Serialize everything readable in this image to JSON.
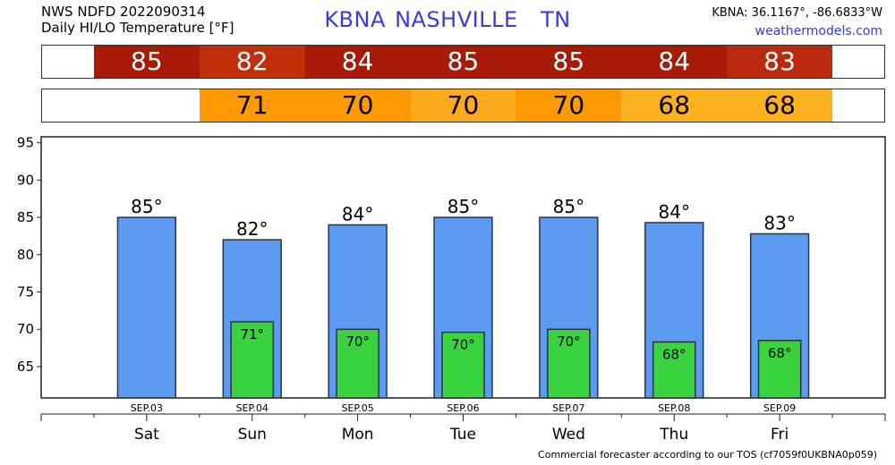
{
  "header": {
    "line1": "NWS NDFD 2022090314",
    "line2": "Daily HI/LO Temperature [°F]",
    "station_code": "KBNA",
    "station_name": "NASHVILLE",
    "state": "TN",
    "coords": "KBNA: 36.1167°, -86.6833°W",
    "site": "weathermodels.com"
  },
  "footer": "Commercial forecaster according to our TOS (cf7059f0UKBNA0p059)",
  "colors": {
    "hi_bar": "#5b9cf0",
    "lo_bar": "#38d33f",
    "hi_strip": [
      "#a81a08",
      "#c12e0a",
      "#a81a08",
      "#a81a08",
      "#a81a08",
      "#a81a08",
      "#bb2a0c"
    ],
    "lo_strip": [
      "#ff9a05",
      "#ff9a05",
      "#fcaa1d",
      "#ff9a05",
      "#fcb11f",
      "#fcb11f"
    ]
  },
  "chart_data": {
    "type": "bar",
    "categories": [
      "Sat",
      "Sun",
      "Mon",
      "Tue",
      "Wed",
      "Thu",
      "Fri"
    ],
    "dates": [
      "SEP.03",
      "SEP.04",
      "SEP.05",
      "SEP.06",
      "SEP.07",
      "SEP.08",
      "SEP.09"
    ],
    "series": [
      {
        "values": [
          85,
          82,
          84,
          85,
          85,
          84,
          83
        ]
      },
      {
        "values": [
          null,
          71,
          70,
          70,
          70,
          68,
          68
        ]
      }
    ],
    "bar_tops": [
      [
        85,
        82,
        84,
        85,
        85,
        84.3,
        82.8
      ],
      [
        null,
        71,
        70,
        69.6,
        70,
        68.3,
        68.5
      ]
    ],
    "yticks": [
      65,
      70,
      75,
      80,
      85,
      90,
      95
    ],
    "ylim": [
      60.8,
      95.8
    ],
    "grid": false
  }
}
